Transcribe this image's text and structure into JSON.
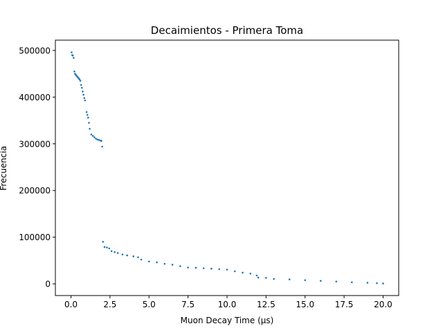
{
  "chart_data": {
    "type": "scatter",
    "title": "Decaimientos - Primera Toma",
    "xlabel": "Muon Decay Time (µs)",
    "ylabel": "Frecuencia",
    "xlim": [
      -1.0,
      21.0
    ],
    "ylim": [
      -25000,
      522000
    ],
    "xticks": [
      0.0,
      2.5,
      5.0,
      7.5,
      10.0,
      12.5,
      15.0,
      17.5,
      20.0
    ],
    "xtick_labels": [
      "0.0",
      "2.5",
      "5.0",
      "7.5",
      "10.0",
      "12.5",
      "15.0",
      "17.5",
      "20.0"
    ],
    "yticks": [
      0,
      100000,
      200000,
      300000,
      400000,
      500000
    ],
    "ytick_labels": [
      "0",
      "100000",
      "200000",
      "300000",
      "400000",
      "500000"
    ],
    "grid": false,
    "series": [
      {
        "color": "#1f77b4",
        "points": [
          [
            0.04,
            496000
          ],
          [
            0.08,
            490000
          ],
          [
            0.12,
            489000
          ],
          [
            0.17,
            484000
          ],
          [
            0.22,
            455000
          ],
          [
            0.26,
            450000
          ],
          [
            0.3,
            448000
          ],
          [
            0.35,
            446000
          ],
          [
            0.4,
            444000
          ],
          [
            0.45,
            442000
          ],
          [
            0.5,
            440000
          ],
          [
            0.55,
            438000
          ],
          [
            0.6,
            435000
          ],
          [
            0.65,
            426000
          ],
          [
            0.7,
            420000
          ],
          [
            0.75,
            412000
          ],
          [
            0.8,
            405000
          ],
          [
            0.85,
            398000
          ],
          [
            0.9,
            393000
          ],
          [
            1.0,
            368000
          ],
          [
            1.05,
            362000
          ],
          [
            1.1,
            356000
          ],
          [
            1.15,
            345000
          ],
          [
            1.2,
            332000
          ],
          [
            1.3,
            320000
          ],
          [
            1.4,
            317000
          ],
          [
            1.5,
            314000
          ],
          [
            1.6,
            311000
          ],
          [
            1.7,
            309000
          ],
          [
            1.8,
            308000
          ],
          [
            1.9,
            307000
          ],
          [
            1.95,
            306000
          ],
          [
            2.0,
            294000
          ],
          [
            2.05,
            90000
          ],
          [
            2.15,
            79000
          ],
          [
            2.3,
            78000
          ],
          [
            2.45,
            76000
          ],
          [
            2.6,
            70000
          ],
          [
            2.8,
            68000
          ],
          [
            3.0,
            66000
          ],
          [
            3.3,
            63000
          ],
          [
            3.6,
            61000
          ],
          [
            4.0,
            59000
          ],
          [
            4.3,
            57000
          ],
          [
            4.5,
            52000
          ],
          [
            5.0,
            48000
          ],
          [
            5.5,
            46000
          ],
          [
            6.0,
            43000
          ],
          [
            6.5,
            41000
          ],
          [
            7.0,
            38000
          ],
          [
            7.5,
            35000
          ],
          [
            8.0,
            34500
          ],
          [
            8.5,
            33500
          ],
          [
            9.0,
            32500
          ],
          [
            9.5,
            31500
          ],
          [
            10.0,
            30500
          ],
          [
            10.5,
            27000
          ],
          [
            11.0,
            24000
          ],
          [
            11.5,
            22000
          ],
          [
            11.9,
            18000
          ],
          [
            12.0,
            13500
          ],
          [
            12.5,
            13000
          ],
          [
            13.0,
            10500
          ],
          [
            14.0,
            9500
          ],
          [
            15.0,
            8000
          ],
          [
            16.0,
            6500
          ],
          [
            17.0,
            5000
          ],
          [
            18.0,
            3500
          ],
          [
            19.0,
            2500
          ],
          [
            19.6,
            1500
          ],
          [
            20.0,
            800
          ]
        ]
      }
    ]
  }
}
